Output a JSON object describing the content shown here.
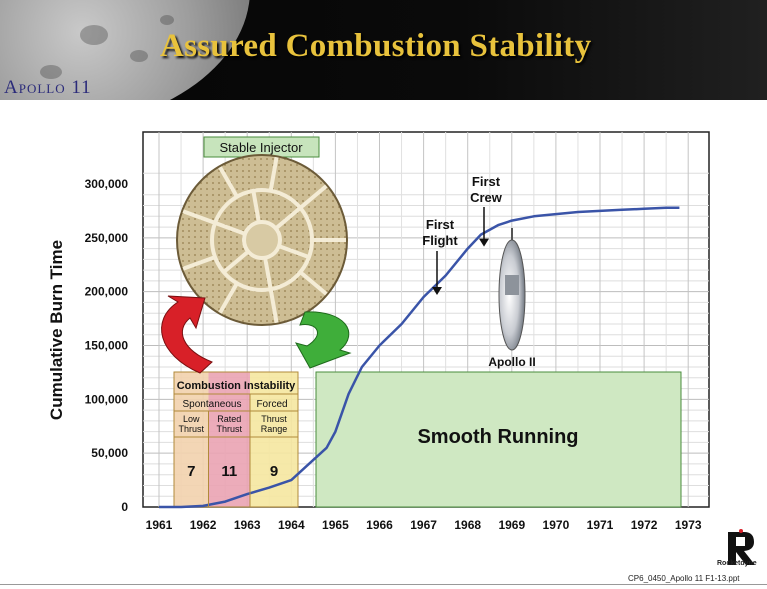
{
  "slide": {
    "title": "Assured Combustion Stability",
    "mission_label": "Apollo 11",
    "company": "Rocketdyne",
    "footer_code": "CP6_0450_Apollo 11 F1-13.ppt"
  },
  "chart_data": {
    "type": "line",
    "ylabel": "Cumulative Burn Time",
    "xlabel": "",
    "categories": [
      "1961",
      "1962",
      "1963",
      "1964",
      "1965",
      "1966",
      "1967",
      "1968",
      "1969",
      "1970",
      "1971",
      "1972",
      "1973"
    ],
    "ylim": [
      0,
      300000
    ],
    "yticks": [
      "0",
      "50,000",
      "100,000",
      "150,000",
      "200,000",
      "250,000",
      "300,000"
    ],
    "grid": true,
    "series": [
      {
        "values": [
          [
            1961.0,
            0
          ],
          [
            1961.5,
            0
          ],
          [
            1962.0,
            1000
          ],
          [
            1962.5,
            5000
          ],
          [
            1963.0,
            12000
          ],
          [
            1963.5,
            18000
          ],
          [
            1964.0,
            25000
          ],
          [
            1964.4,
            40000
          ],
          [
            1964.8,
            55000
          ],
          [
            1965.0,
            70000
          ],
          [
            1965.3,
            105000
          ],
          [
            1965.6,
            130000
          ],
          [
            1966.0,
            150000
          ],
          [
            1966.5,
            170000
          ],
          [
            1967.0,
            195000
          ],
          [
            1967.5,
            215000
          ],
          [
            1968.0,
            240000
          ],
          [
            1968.3,
            253000
          ],
          [
            1968.7,
            262000
          ],
          [
            1969.0,
            266000
          ],
          [
            1969.5,
            270000
          ],
          [
            1970.0,
            272000
          ],
          [
            1970.5,
            274000
          ],
          [
            1971.0,
            275000
          ],
          [
            1971.5,
            276000
          ],
          [
            1972.0,
            277000
          ],
          [
            1972.5,
            278000
          ],
          [
            1972.8,
            278000
          ]
        ],
        "color": "#3a54a8"
      }
    ],
    "annotations": {
      "first_flight": {
        "lines": [
          "First",
          "Flight"
        ],
        "x": 1967.0,
        "y": 195000
      },
      "first_crew": {
        "lines": [
          "First",
          "Crew"
        ],
        "x": 1968.0,
        "y": 240000
      },
      "apollo": "Apollo II",
      "stable_injector": "Stable Injector",
      "smooth_running": "Smooth Running",
      "instability_table": {
        "title": "Combustion Instability",
        "groups": [
          "Spontaneous",
          "Forced"
        ],
        "columns": [
          {
            "header": [
              "Low",
              "Thrust"
            ],
            "value": "7",
            "color": "#f2d1ad"
          },
          {
            "header": [
              "Rated",
              "Thrust"
            ],
            "value": "11",
            "color": "#eaa3b3"
          },
          {
            "header": [
              "Thrust",
              "Range"
            ],
            "value": "9",
            "color": "#f5e7a0"
          }
        ]
      }
    },
    "colors": {
      "smooth_box": "#cfe8c2",
      "smooth_border": "#4a8c3c",
      "injector_label_bg": "#c7e4bc",
      "red_arrow": "#d82028",
      "green_arrow": "#3fae3a",
      "title": "#e8c23c"
    }
  }
}
